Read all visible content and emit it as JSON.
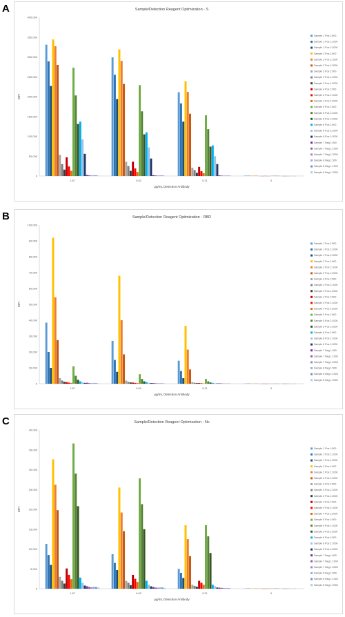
{
  "series_names": [
    "Sample 1 Pos 1:500",
    "Sample 1 Pos 1:1000",
    "Sample 1 Pos 1:2000",
    "Sample 2 Pos 1:500",
    "Sample 2 Pos 1:1000",
    "Sample 2 Pos 1:2000",
    "Sample 3 Pos 1:500",
    "Sample 3 Pos 1:1000",
    "Sample 3 Pos 1:2000",
    "Sample 4 Pos 1:500",
    "Sample 4 Pos 1:1000",
    "Sample 4 Pos 1:2000",
    "Sample 5 Pos 1:500",
    "Sample 5 Pos 1:1000",
    "Sample 5 Pos 1:2000",
    "Sample 6 Pos 1:500",
    "Sample 6 Pos 1:1000",
    "Sample 6 Pos 1:2000",
    "Sample 7 Neg 1:500",
    "Sample 7 Neg 1:1000",
    "Sample 7 Neg 1:2000",
    "Sample 8 Neg 1:500",
    "Sample 8 Neg 1:1000",
    "Sample 8 Neg 1:2000"
  ],
  "series_colors": [
    "#5b9bd5",
    "#2e75b6",
    "#1f4e79",
    "#ffc000",
    "#ed7d31",
    "#c55a11",
    "#a5a5a5",
    "#7f7f7f",
    "#3a3a3a",
    "#c00000",
    "#ff0000",
    "#e46c0a",
    "#70ad47",
    "#548235",
    "#375623",
    "#00b0f0",
    "#9dc3e6",
    "#1f3864",
    "#7030a0",
    "#8e5ea2",
    "#a77ec2",
    "#8db3e2",
    "#6f8fbf",
    "#b4c7e7"
  ],
  "panels": [
    {
      "letter": "A",
      "title": "Sample/Detection Reagent Optimization - S",
      "ylabel": "MFI",
      "xlabel": "μg/mL Detection Antibody"
    },
    {
      "letter": "B",
      "title": "Sample/Detection Reagent Optimization - RBD",
      "ylabel": "MFI",
      "xlabel": "μg/mL Detection Antibody"
    },
    {
      "letter": "C",
      "title": "Sample/Detection Reagent Optimization - Nc",
      "ylabel": "MFI",
      "xlabel": "μg/mL Detection Antibody"
    }
  ],
  "chart_data": [
    {
      "type": "bar",
      "title": "Sample/Detection Reagent Optimization - S",
      "xlabel": "μg/mL Detection Antibody",
      "ylabel": "MFI",
      "categories": [
        "1.87",
        "0.62",
        "0.21",
        "0"
      ],
      "ylim": [
        0,
        400000
      ],
      "yticks": [
        0,
        50000,
        100000,
        150000,
        200000,
        250000,
        300000,
        350000,
        400000
      ],
      "ytick_labels": [
        "0",
        "50,000",
        "100,000",
        "150,000",
        "200,000",
        "250,000",
        "300,000",
        "350,000",
        "400,000"
      ],
      "grid": false,
      "legend": "right",
      "series": [
        {
          "name": "Sample 1 Pos 1:500",
          "values": [
            331000,
            299000,
            211000,
            800
          ]
        },
        {
          "name": "Sample 1 Pos 1:1000",
          "values": [
            289000,
            255000,
            183000,
            600
          ]
        },
        {
          "name": "Sample 1 Pos 1:2000",
          "values": [
            227000,
            194000,
            137000,
            500
          ]
        },
        {
          "name": "Sample 2 Pos 1:500",
          "values": [
            344000,
            319000,
            239000,
            900
          ]
        },
        {
          "name": "Sample 2 Pos 1:1000",
          "values": [
            327000,
            290000,
            212000,
            700
          ]
        },
        {
          "name": "Sample 2 Pos 1:2000",
          "values": [
            280000,
            232000,
            157000,
            600
          ]
        },
        {
          "name": "Sample 3 Pos 1:500",
          "values": [
            53000,
            36000,
            21000,
            300
          ]
        },
        {
          "name": "Sample 3 Pos 1:1000",
          "values": [
            30000,
            25000,
            15000,
            200
          ]
        },
        {
          "name": "Sample 3 Pos 1:2000",
          "values": [
            16000,
            13000,
            8000,
            200
          ]
        },
        {
          "name": "Sample 4 Pos 1:500",
          "values": [
            47000,
            36000,
            23000,
            300
          ]
        },
        {
          "name": "Sample 4 Pos 1:1000",
          "values": [
            24000,
            19000,
            12000,
            200
          ]
        },
        {
          "name": "Sample 4 Pos 1:2000",
          "values": [
            13000,
            10000,
            7000,
            200
          ]
        },
        {
          "name": "Sample 5 Pos 1:500",
          "values": [
            273000,
            229000,
            153000,
            600
          ]
        },
        {
          "name": "Sample 5 Pos 1:1000",
          "values": [
            203000,
            163000,
            118000,
            500
          ]
        },
        {
          "name": "Sample 5 Pos 1:2000",
          "values": [
            131000,
            105000,
            74000,
            400
          ]
        },
        {
          "name": "Sample 6 Pos 1:500",
          "values": [
            137000,
            110000,
            77000,
            400
          ]
        },
        {
          "name": "Sample 6 Pos 1:1000",
          "values": [
            92000,
            72000,
            50000,
            300
          ]
        },
        {
          "name": "Sample 6 Pos 1:2000",
          "values": [
            56000,
            44000,
            30000,
            200
          ]
        },
        {
          "name": "Sample 7 Neg 1:500",
          "values": [
            2500,
            2000,
            1500,
            200
          ]
        },
        {
          "name": "Sample 7 Neg 1:1000",
          "values": [
            1800,
            1500,
            1100,
            200
          ]
        },
        {
          "name": "Sample 7 Neg 1:2000",
          "values": [
            1300,
            1100,
            900,
            200
          ]
        },
        {
          "name": "Sample 8 Neg 1:500",
          "values": [
            2000,
            1700,
            1300,
            200
          ]
        },
        {
          "name": "Sample 8 Neg 1:1000",
          "values": [
            1500,
            1300,
            1000,
            200
          ]
        },
        {
          "name": "Sample 8 Neg 1:2000",
          "values": [
            1100,
            1000,
            800,
            200
          ]
        }
      ]
    },
    {
      "type": "bar",
      "title": "Sample/Detection Reagent Optimization - RBD",
      "xlabel": "μg/mL Detection Antibody",
      "ylabel": "MFI",
      "categories": [
        "1.87",
        "0.62",
        "0.21",
        "0"
      ],
      "ylim": [
        0,
        100000
      ],
      "yticks": [
        0,
        10000,
        20000,
        30000,
        40000,
        50000,
        60000,
        70000,
        80000,
        90000,
        100000
      ],
      "ytick_labels": [
        "0",
        "10,000",
        "20,000",
        "30,000",
        "40,000",
        "50,000",
        "60,000",
        "70,000",
        "80,000",
        "90,000",
        "100,000"
      ],
      "grid": false,
      "legend": "right",
      "series": [
        {
          "name": "Sample 1 Pos 1:500",
          "values": [
            38500,
            27000,
            14500,
            100
          ]
        },
        {
          "name": "Sample 1 Pos 1:1000",
          "values": [
            20000,
            15000,
            8000,
            100
          ]
        },
        {
          "name": "Sample 1 Pos 1:2000",
          "values": [
            10000,
            7500,
            3500,
            100
          ]
        },
        {
          "name": "Sample 2 Pos 1:500",
          "values": [
            92000,
            68000,
            36500,
            100
          ]
        },
        {
          "name": "Sample 2 Pos 1:1000",
          "values": [
            54500,
            40000,
            21500,
            100
          ]
        },
        {
          "name": "Sample 2 Pos 1:2000",
          "values": [
            27500,
            18500,
            9000,
            100
          ]
        },
        {
          "name": "Sample 3 Pos 1:500",
          "values": [
            3500,
            2000,
            1000,
            50
          ]
        },
        {
          "name": "Sample 3 Pos 1:1000",
          "values": [
            2000,
            1200,
            600,
            50
          ]
        },
        {
          "name": "Sample 3 Pos 1:2000",
          "values": [
            1200,
            800,
            400,
            50
          ]
        },
        {
          "name": "Sample 4 Pos 1:500",
          "values": [
            1000,
            700,
            400,
            50
          ]
        },
        {
          "name": "Sample 4 Pos 1:1000",
          "values": [
            700,
            500,
            300,
            50
          ]
        },
        {
          "name": "Sample 4 Pos 1:2000",
          "values": [
            500,
            400,
            200,
            50
          ]
        },
        {
          "name": "Sample 5 Pos 1:500",
          "values": [
            11000,
            6000,
            3000,
            50
          ]
        },
        {
          "name": "Sample 5 Pos 1:1000",
          "values": [
            5000,
            3000,
            1500,
            50
          ]
        },
        {
          "name": "Sample 5 Pos 1:2000",
          "values": [
            2500,
            1500,
            800,
            50
          ]
        },
        {
          "name": "Sample 6 Pos 1:500",
          "values": [
            1500,
            1000,
            500,
            50
          ]
        },
        {
          "name": "Sample 6 Pos 1:1000",
          "values": [
            800,
            600,
            300,
            50
          ]
        },
        {
          "name": "Sample 6 Pos 1:2000",
          "values": [
            500,
            400,
            200,
            50
          ]
        },
        {
          "name": "Sample 7 Neg 1:500",
          "values": [
            600,
            400,
            250,
            50
          ]
        },
        {
          "name": "Sample 7 Neg 1:1000",
          "values": [
            400,
            300,
            200,
            50
          ]
        },
        {
          "name": "Sample 7 Neg 1:2000",
          "values": [
            300,
            250,
            150,
            50
          ]
        },
        {
          "name": "Sample 8 Neg 1:500",
          "values": [
            500,
            350,
            200,
            50
          ]
        },
        {
          "name": "Sample 8 Neg 1:1000",
          "values": [
            350,
            250,
            150,
            50
          ]
        },
        {
          "name": "Sample 8 Neg 1:2000",
          "values": [
            250,
            200,
            100,
            50
          ]
        }
      ]
    },
    {
      "type": "bar",
      "title": "Sample/Detection Reagent Optimization - Nc",
      "xlabel": "μg/mL Detection Antibody",
      "ylabel": "MFI",
      "categories": [
        "1.87",
        "0.62",
        "0.21",
        "0"
      ],
      "ylim": [
        0,
        40000
      ],
      "yticks": [
        0,
        5000,
        10000,
        15000,
        20000,
        25000,
        30000,
        35000,
        40000
      ],
      "ytick_labels": [
        "0",
        "5,000",
        "10,000",
        "15,000",
        "20,000",
        "25,000",
        "30,000",
        "35,000",
        "40,000"
      ],
      "grid": false,
      "legend": "right",
      "series": [
        {
          "name": "Sample 1 Pos 1:500",
          "values": [
            11300,
            8700,
            5000,
            50
          ]
        },
        {
          "name": "Sample 1 Pos 1:1000",
          "values": [
            8500,
            6500,
            4000,
            50
          ]
        },
        {
          "name": "Sample 1 Pos 1:2000",
          "values": [
            6000,
            4700,
            2700,
            50
          ]
        },
        {
          "name": "Sample 2 Pos 1:500",
          "values": [
            32600,
            25500,
            16000,
            50
          ]
        },
        {
          "name": "Sample 2 Pos 1:1000",
          "values": [
            26200,
            19200,
            12500,
            50
          ]
        },
        {
          "name": "Sample 2 Pos 1:2000",
          "values": [
            19800,
            14500,
            8200,
            50
          ]
        },
        {
          "name": "Sample 3 Pos 1:500",
          "values": [
            3000,
            2000,
            1000,
            30
          ]
        },
        {
          "name": "Sample 3 Pos 1:1000",
          "values": [
            2000,
            1500,
            700,
            30
          ]
        },
        {
          "name": "Sample 3 Pos 1:2000",
          "values": [
            1300,
            900,
            500,
            30
          ]
        },
        {
          "name": "Sample 4 Pos 1:500",
          "values": [
            5100,
            3500,
            2000,
            30
          ]
        },
        {
          "name": "Sample 4 Pos 1:1000",
          "values": [
            3500,
            2500,
            1500,
            30
          ]
        },
        {
          "name": "Sample 4 Pos 1:2000",
          "values": [
            2400,
            1700,
            1000,
            30
          ]
        },
        {
          "name": "Sample 5 Pos 1:500",
          "values": [
            36600,
            27800,
            16000,
            50
          ]
        },
        {
          "name": "Sample 5 Pos 1:1000",
          "values": [
            29000,
            21300,
            13200,
            50
          ]
        },
        {
          "name": "Sample 5 Pos 1:2000",
          "values": [
            20800,
            15000,
            9000,
            50
          ]
        },
        {
          "name": "Sample 6 Pos 1:500",
          "values": [
            2800,
            2000,
            1000,
            30
          ]
        },
        {
          "name": "Sample 6 Pos 1:1000",
          "values": [
            1500,
            1000,
            600,
            30
          ]
        },
        {
          "name": "Sample 6 Pos 1:2000",
          "values": [
            800,
            600,
            300,
            30
          ]
        },
        {
          "name": "Sample 7 Neg 1:500",
          "values": [
            600,
            400,
            250,
            30
          ]
        },
        {
          "name": "Sample 7 Neg 1:1000",
          "values": [
            450,
            300,
            200,
            30
          ]
        },
        {
          "name": "Sample 7 Neg 1:2000",
          "values": [
            350,
            250,
            150,
            30
          ]
        },
        {
          "name": "Sample 8 Neg 1:500",
          "values": [
            500,
            350,
            200,
            30
          ]
        },
        {
          "name": "Sample 8 Neg 1:1000",
          "values": [
            400,
            300,
            150,
            30
          ]
        },
        {
          "name": "Sample 8 Neg 1:2000",
          "values": [
            300,
            200,
            100,
            30
          ]
        }
      ]
    }
  ]
}
